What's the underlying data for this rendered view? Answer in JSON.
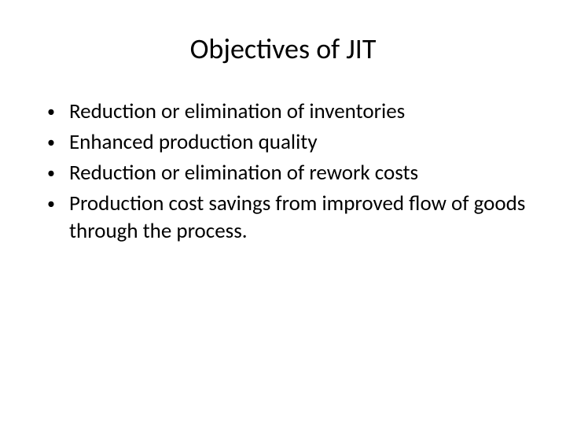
{
  "slide": {
    "title": "Objectives of JIT",
    "title_fontsize": 36,
    "title_color": "#000000",
    "bullets": [
      "Reduction or elimination of inventories",
      "Enhanced production quality",
      "Reduction or elimination of rework costs",
      "Production cost savings from improved flow of goods through the process."
    ],
    "bullet_fontsize": 27,
    "bullet_color": "#000000",
    "bullet_marker": "•",
    "background_color": "#ffffff",
    "font_family": "Calibri"
  }
}
